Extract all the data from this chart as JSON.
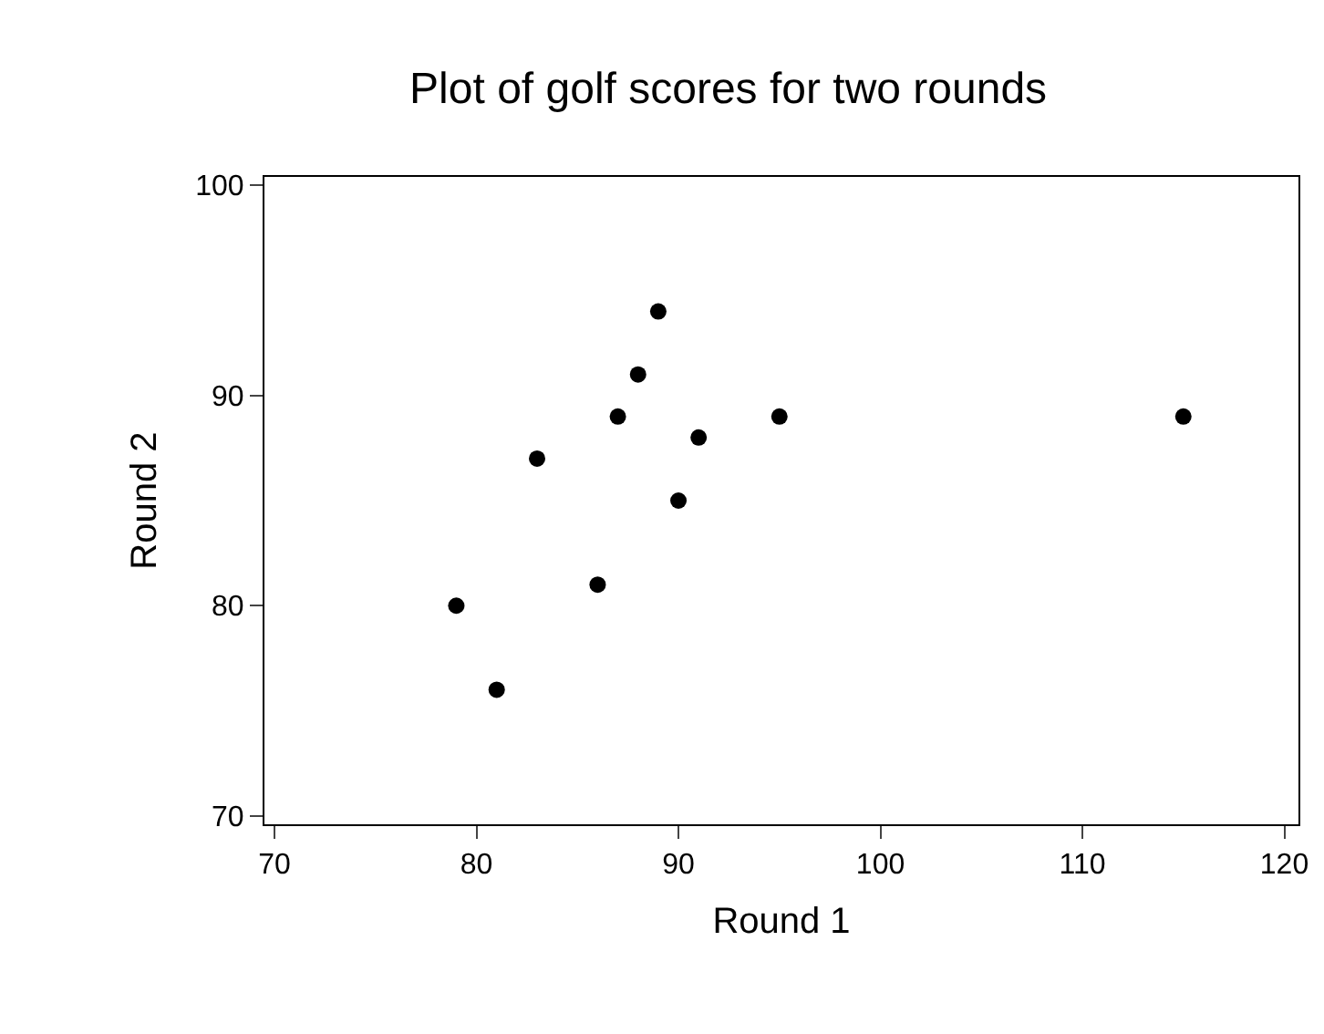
{
  "chart_data": {
    "type": "scatter",
    "title": "Plot of golf scores for two rounds",
    "xlabel": "Round 1",
    "ylabel": "Round 2",
    "x": [
      79,
      81,
      83,
      86,
      87,
      88,
      89,
      90,
      91,
      95,
      115
    ],
    "series": [
      {
        "color": "#000000",
        "values": [
          80,
          76,
          87,
          81,
          89,
          91,
          94,
          85,
          88,
          89,
          89
        ]
      }
    ],
    "xlim": [
      69.5,
      120.7
    ],
    "ylim": [
      69.6,
      100.4
    ],
    "xticks": [
      70,
      80,
      90,
      100,
      110,
      120
    ],
    "yticks": [
      70,
      80,
      90,
      100
    ],
    "marker": "circle"
  }
}
